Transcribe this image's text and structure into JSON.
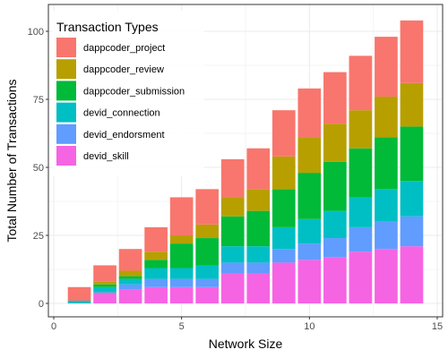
{
  "chart_data": {
    "type": "bar",
    "stacked": true,
    "xlabel": "Network Size",
    "ylabel": "Total Number of Transactions",
    "xlim": [
      0,
      15
    ],
    "ylim": [
      0,
      100
    ],
    "xticks": [
      "0",
      "5",
      "10",
      "15"
    ],
    "yticks": [
      "0",
      "25",
      "50",
      "75",
      "100"
    ],
    "grid": true,
    "legend": {
      "title": "Transaction Types",
      "position": "top-left"
    },
    "x": [
      1,
      2,
      3,
      4,
      5,
      6,
      7,
      8,
      9,
      10,
      11,
      12,
      13,
      14
    ],
    "series": [
      {
        "name": "devid_skill",
        "color": "#F564E3",
        "values": [
          0,
          4,
          5,
          6,
          6,
          6,
          11,
          11,
          15,
          16,
          17,
          19,
          20,
          21
        ]
      },
      {
        "name": "devid_endorsment",
        "color": "#619CFF",
        "values": [
          0,
          0,
          2,
          3,
          3,
          3,
          4,
          4,
          5,
          6,
          7,
          9,
          10,
          11
        ]
      },
      {
        "name": "devid_connection",
        "color": "#00BFC4",
        "values": [
          1,
          2,
          2,
          4,
          4,
          5,
          6,
          6,
          8,
          9,
          10,
          11,
          12,
          13
        ]
      },
      {
        "name": "dappcoder_submission",
        "color": "#00BA38",
        "values": [
          0,
          1,
          1,
          3,
          9,
          10,
          11,
          13,
          14,
          17,
          18,
          18,
          19,
          20
        ]
      },
      {
        "name": "dappcoder_review",
        "color": "#B79F00",
        "values": [
          0,
          1,
          2,
          3,
          3,
          5,
          7,
          8,
          12,
          13,
          14,
          14,
          15,
          16
        ]
      },
      {
        "name": "dappcoder_project",
        "color": "#F8766D",
        "values": [
          5,
          6,
          8,
          9,
          14,
          13,
          14,
          15,
          17,
          18,
          19,
          20,
          22,
          23
        ]
      }
    ],
    "legend_order": [
      "dappcoder_project",
      "dappcoder_review",
      "dappcoder_submission",
      "devid_connection",
      "devid_endorsment",
      "devid_skill"
    ]
  }
}
